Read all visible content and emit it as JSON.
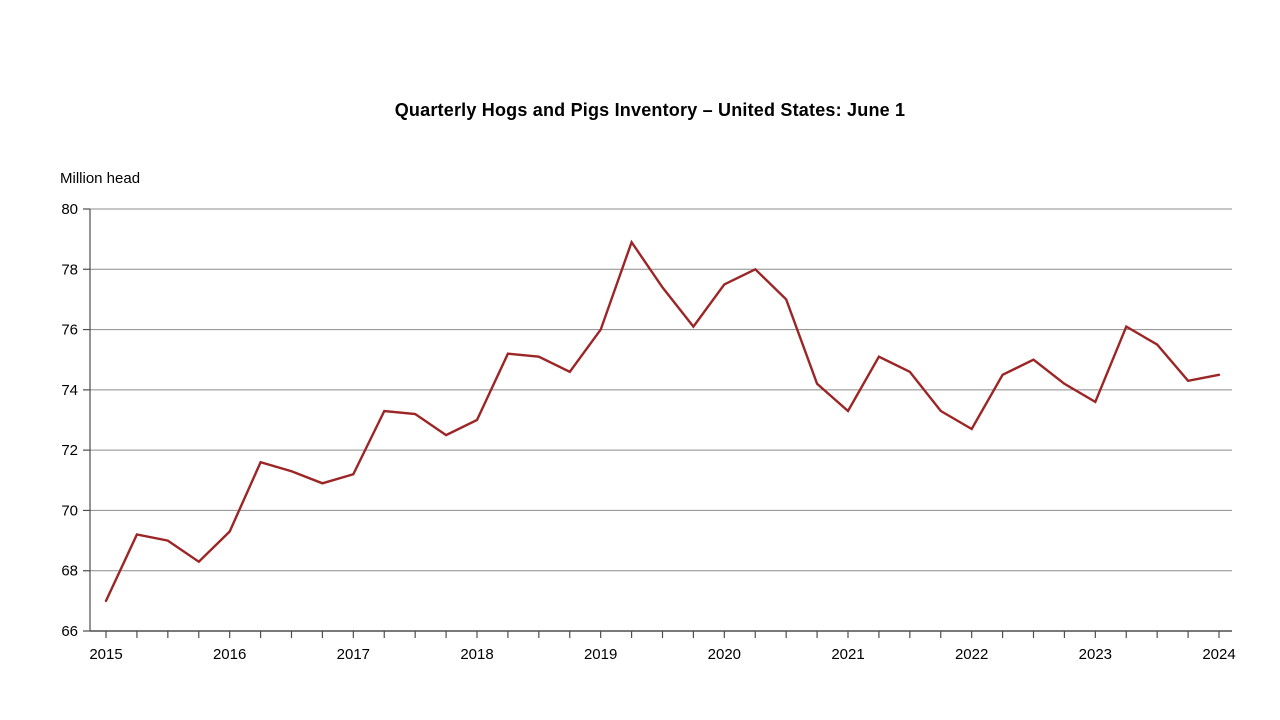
{
  "chart": {
    "title": "Quarterly Hogs and Pigs Inventory – United States: June 1",
    "unit_label": "Million head"
  },
  "chart_data": {
    "type": "line",
    "title": "Quarterly Hogs and Pigs Inventory – United States: June 1",
    "ylabel": "Million head",
    "ylim": [
      66,
      80
    ],
    "ytick_step": 2,
    "grid": "horizontal",
    "legend": "none",
    "x_tick_labels": [
      "2015",
      "2016",
      "2017",
      "2018",
      "2019",
      "2020",
      "2021",
      "2022",
      "2023",
      "2024"
    ],
    "points_per_year": 4,
    "x_description": "Quarterly inventory points; each labeled year tick falls on every fourth point (June 1 of that year); series runs June 1 2015 through June 1 2024",
    "values_million_head": [
      67.0,
      69.2,
      69.0,
      68.3,
      69.3,
      71.6,
      71.3,
      70.9,
      71.2,
      73.3,
      73.2,
      72.5,
      73.0,
      75.2,
      75.1,
      74.6,
      76.0,
      78.9,
      77.4,
      76.1,
      77.5,
      78.0,
      77.0,
      74.2,
      73.3,
      75.1,
      74.6,
      73.3,
      72.7,
      74.5,
      75.0,
      74.2,
      73.6,
      76.1,
      75.5,
      74.3,
      74.5
    ],
    "line_color": "#9C2526",
    "gridline_color": "#8C8C8C",
    "axis_color": "#4D4D4D",
    "text_color": "#000000"
  }
}
